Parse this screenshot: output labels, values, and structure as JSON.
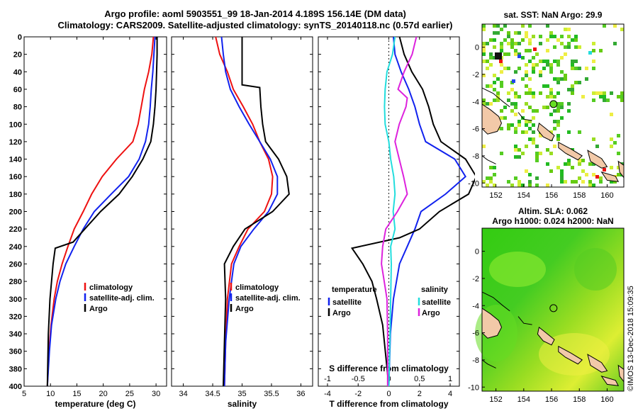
{
  "header": {
    "title_line1": "Argo profile: aoml 5903551_99 18-Jan-2014 4.189S 156.14E (DM data)",
    "title_line2": "Climatology: CARS2009. Satellite-adjusted climatology: synTS_20140118.nc (0.57d earlier)"
  },
  "colors": {
    "climatology": "#ee1111",
    "satellite": "#1122ee",
    "argo": "#000000",
    "t_sat": "#22dddd",
    "s_argo": "#dd22dd"
  },
  "depth_ticks": [
    "0",
    "20",
    "40",
    "60",
    "80",
    "100",
    "120",
    "140",
    "160",
    "180",
    "200",
    "220",
    "240",
    "260",
    "280",
    "300",
    "320",
    "340",
    "360",
    "380",
    "400"
  ],
  "chart_data": [
    {
      "type": "line",
      "panel": "temperature",
      "xlabel": "temperature (deg C)",
      "xlim": [
        5,
        32
      ],
      "ylim": [
        0,
        400
      ],
      "xticks": [
        "5",
        "10",
        "15",
        "20",
        "25",
        "30"
      ],
      "legend": [
        "climatology",
        "satellite-adj. clim.",
        "Argo"
      ],
      "series": [
        {
          "name": "climatology",
          "color_key": "climatology",
          "points": [
            [
              29.5,
              0
            ],
            [
              29.2,
              20
            ],
            [
              28.6,
              40
            ],
            [
              27.8,
              60
            ],
            [
              27.2,
              80
            ],
            [
              26.6,
              100
            ],
            [
              25.6,
              120
            ],
            [
              22.5,
              140
            ],
            [
              19.8,
              160
            ],
            [
              17.8,
              180
            ],
            [
              16.2,
              200
            ],
            [
              14.5,
              220
            ],
            [
              13.3,
              240
            ],
            [
              12.2,
              260
            ],
            [
              11.3,
              280
            ],
            [
              10.7,
              300
            ],
            [
              10.1,
              330
            ],
            [
              9.7,
              360
            ],
            [
              9.4,
              400
            ]
          ]
        },
        {
          "name": "satellite-adj. clim.",
          "color_key": "satellite",
          "points": [
            [
              29.8,
              0
            ],
            [
              29.6,
              20
            ],
            [
              29.4,
              40
            ],
            [
              29.1,
              60
            ],
            [
              28.9,
              80
            ],
            [
              28.6,
              100
            ],
            [
              28.0,
              120
            ],
            [
              26.8,
              140
            ],
            [
              24.8,
              160
            ],
            [
              21.5,
              180
            ],
            [
              18.3,
              200
            ],
            [
              16.2,
              220
            ],
            [
              14.5,
              240
            ],
            [
              12.9,
              260
            ],
            [
              11.8,
              280
            ],
            [
              11.0,
              300
            ],
            [
              10.2,
              330
            ],
            [
              9.8,
              360
            ],
            [
              9.4,
              400
            ]
          ]
        },
        {
          "name": "Argo",
          "color_key": "argo",
          "points": [
            [
              30.2,
              0
            ],
            [
              30.2,
              20
            ],
            [
              30.1,
              40
            ],
            [
              30.0,
              60
            ],
            [
              29.8,
              80
            ],
            [
              29.5,
              100
            ],
            [
              29.0,
              120
            ],
            [
              27.5,
              140
            ],
            [
              25.5,
              160
            ],
            [
              23.0,
              180
            ],
            [
              19.5,
              200
            ],
            [
              16.5,
              220
            ],
            [
              14.3,
              235
            ],
            [
              10.9,
              242
            ],
            [
              10.5,
              260
            ],
            [
              10.2,
              280
            ],
            [
              9.9,
              300
            ],
            [
              9.6,
              340
            ],
            [
              9.4,
              400
            ]
          ]
        }
      ]
    },
    {
      "type": "line",
      "panel": "salinity",
      "xlabel": "salinity",
      "xlim": [
        33.8,
        36.2
      ],
      "ylim": [
        0,
        400
      ],
      "xticks": [
        "34",
        "34.5",
        "35",
        "35.5",
        "36"
      ],
      "legend": [
        "climatology",
        "satellite-adj. clim.",
        "Argo"
      ],
      "series": [
        {
          "name": "climatology",
          "color_key": "climatology",
          "points": [
            [
              34.55,
              0
            ],
            [
              34.62,
              20
            ],
            [
              34.75,
              40
            ],
            [
              34.85,
              60
            ],
            [
              35.02,
              80
            ],
            [
              35.18,
              100
            ],
            [
              35.3,
              120
            ],
            [
              35.45,
              140
            ],
            [
              35.52,
              160
            ],
            [
              35.5,
              180
            ],
            [
              35.38,
              200
            ],
            [
              35.1,
              220
            ],
            [
              34.95,
              240
            ],
            [
              34.82,
              260
            ],
            [
              34.75,
              300
            ],
            [
              34.72,
              350
            ],
            [
              34.7,
              400
            ]
          ]
        },
        {
          "name": "satellite-adj. clim.",
          "color_key": "satellite",
          "points": [
            [
              34.65,
              0
            ],
            [
              34.68,
              20
            ],
            [
              34.72,
              40
            ],
            [
              34.8,
              60
            ],
            [
              34.95,
              80
            ],
            [
              35.12,
              100
            ],
            [
              35.3,
              120
            ],
            [
              35.48,
              140
            ],
            [
              35.6,
              160
            ],
            [
              35.6,
              180
            ],
            [
              35.45,
              200
            ],
            [
              35.2,
              220
            ],
            [
              34.98,
              240
            ],
            [
              34.86,
              260
            ],
            [
              34.78,
              300
            ],
            [
              34.72,
              350
            ],
            [
              34.7,
              400
            ]
          ]
        },
        {
          "name": "Argo",
          "color_key": "argo",
          "points": [
            [
              35.0,
              0
            ],
            [
              35.0,
              20
            ],
            [
              35.0,
              40
            ],
            [
              35.0,
              55
            ],
            [
              35.3,
              58
            ],
            [
              35.32,
              80
            ],
            [
              35.35,
              100
            ],
            [
              35.4,
              120
            ],
            [
              35.62,
              140
            ],
            [
              35.76,
              160
            ],
            [
              35.8,
              180
            ],
            [
              35.52,
              200
            ],
            [
              35.05,
              220
            ],
            [
              34.85,
              240
            ],
            [
              34.7,
              260
            ],
            [
              34.72,
              300
            ],
            [
              34.7,
              350
            ],
            [
              34.68,
              400
            ]
          ]
        }
      ]
    },
    {
      "type": "line",
      "panel": "difference",
      "xlabel": "T difference from climatology",
      "xlabel_top": "S difference from climatology",
      "xlim": [
        -4.6,
        4.6
      ],
      "ylim": [
        0,
        400
      ],
      "xticks": [
        "-4",
        "-2",
        "0",
        "2",
        "4"
      ],
      "xticks_top": [
        "-1",
        "-0.5",
        "0",
        "0.5",
        "1"
      ],
      "legend_left": [
        "temperature",
        "satellite",
        "Argo"
      ],
      "legend_right": [
        "salinity",
        "satellite",
        "Argo"
      ],
      "series": [
        {
          "name": "temperature satellite",
          "color_key": "satellite",
          "points": [
            [
              0.3,
              0
            ],
            [
              0.4,
              20
            ],
            [
              0.8,
              40
            ],
            [
              1.3,
              60
            ],
            [
              1.7,
              80
            ],
            [
              2.0,
              100
            ],
            [
              2.4,
              120
            ],
            [
              4.3,
              140
            ],
            [
              5.0,
              160
            ],
            [
              3.7,
              180
            ],
            [
              2.1,
              200
            ],
            [
              1.7,
              220
            ],
            [
              1.2,
              240
            ],
            [
              0.7,
              260
            ],
            [
              0.5,
              280
            ],
            [
              0.3,
              300
            ],
            [
              0.1,
              340
            ],
            [
              0,
              400
            ]
          ]
        },
        {
          "name": "temperature Argo",
          "color_key": "argo",
          "points": [
            [
              0.7,
              0
            ],
            [
              1.0,
              20
            ],
            [
              1.5,
              40
            ],
            [
              2.2,
              60
            ],
            [
              2.6,
              80
            ],
            [
              2.9,
              100
            ],
            [
              3.4,
              120
            ],
            [
              5.0,
              140
            ],
            [
              5.7,
              160
            ],
            [
              5.2,
              180
            ],
            [
              3.3,
              200
            ],
            [
              2.0,
              220
            ],
            [
              0.7,
              230
            ],
            [
              -2.4,
              242
            ],
            [
              -1.7,
              260
            ],
            [
              -1.1,
              280
            ],
            [
              -0.8,
              300
            ],
            [
              -0.4,
              330
            ],
            [
              0,
              400
            ]
          ]
        },
        {
          "name": "salinity satellite",
          "color_key": "t_sat",
          "points": [
            [
              0.1,
              0
            ],
            [
              0.06,
              20
            ],
            [
              -0.03,
              40
            ],
            [
              -0.06,
              60
            ],
            [
              -0.07,
              80
            ],
            [
              -0.06,
              100
            ],
            [
              0.0,
              120
            ],
            [
              0.03,
              140
            ],
            [
              0.08,
              160
            ],
            [
              0.1,
              180
            ],
            [
              0.07,
              200
            ],
            [
              0.1,
              220
            ],
            [
              0.03,
              240
            ],
            [
              0.04,
              260
            ],
            [
              0.03,
              300
            ],
            [
              0.02,
              340
            ],
            [
              0,
              400
            ]
          ]
        },
        {
          "name": "salinity Argo",
          "color_key": "s_argo",
          "points": [
            [
              0.45,
              0
            ],
            [
              0.38,
              20
            ],
            [
              0.25,
              40
            ],
            [
              0.15,
              60
            ],
            [
              0.3,
              70
            ],
            [
              0.28,
              80
            ],
            [
              0.17,
              100
            ],
            [
              0.1,
              120
            ],
            [
              0.17,
              140
            ],
            [
              0.24,
              160
            ],
            [
              0.3,
              180
            ],
            [
              0.14,
              200
            ],
            [
              -0.05,
              220
            ],
            [
              -0.1,
              240
            ],
            [
              -0.12,
              260
            ],
            [
              -0.03,
              300
            ],
            [
              -0.02,
              340
            ],
            [
              -0.02,
              400
            ]
          ]
        }
      ]
    }
  ],
  "maps": {
    "sst": {
      "title": "sat. SST: NaN Argo: 29.9",
      "xticks": [
        "152",
        "154",
        "156",
        "158",
        "160"
      ],
      "yticks": [
        "0",
        "-2",
        "-4",
        "-6",
        "-8",
        "-10"
      ]
    },
    "sla": {
      "title_line1": "Altim. SLA: 0.062",
      "title_line2": "Argo h1000: 0.024 h2000: NaN",
      "xticks": [
        "152",
        "154",
        "156",
        "158",
        "160"
      ],
      "yticks": [
        "0",
        "-2",
        "-4",
        "-6",
        "-8",
        "-10"
      ]
    }
  },
  "credit": "©IMOS 13-Dec-2018 15:09:35"
}
